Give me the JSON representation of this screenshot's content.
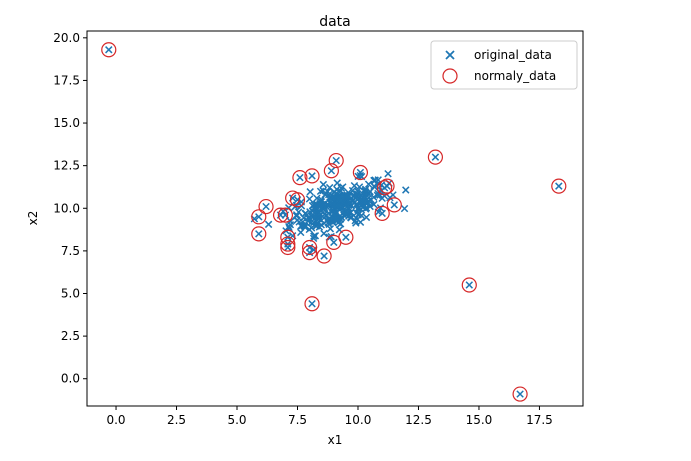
{
  "chart_data": {
    "type": "scatter",
    "title": "data",
    "xlabel": "x1",
    "ylabel": "x2",
    "xlim": [
      -1.2,
      19.3
    ],
    "ylim": [
      -1.6,
      20.4
    ],
    "xticks": [
      0.0,
      2.5,
      5.0,
      7.5,
      10.0,
      12.5,
      15.0,
      17.5
    ],
    "yticks": [
      0.0,
      2.5,
      5.0,
      7.5,
      10.0,
      12.5,
      15.0,
      17.5,
      20.0
    ],
    "xtick_labels": [
      "0.0",
      "2.5",
      "5.0",
      "7.5",
      "10.0",
      "12.5",
      "15.0",
      "17.5"
    ],
    "ytick_labels": [
      "0.0",
      "2.5",
      "5.0",
      "7.5",
      "10.0",
      "12.5",
      "15.0",
      "17.5",
      "20.0"
    ],
    "grid": false,
    "legend_position": "top-right",
    "series": [
      {
        "name": "original_data",
        "marker": "x",
        "color": "#1f77b4",
        "cluster": {
          "center": [
            9.2,
            10.1
          ],
          "spread": [
            1.0,
            0.75
          ],
          "count": 300
        },
        "points": [
          [
            -0.3,
            19.3
          ],
          [
            5.9,
            9.5
          ],
          [
            5.9,
            8.5
          ],
          [
            6.2,
            10.1
          ],
          [
            6.8,
            9.6
          ],
          [
            7.0,
            9.6
          ],
          [
            7.1,
            8.3
          ],
          [
            7.1,
            7.9
          ],
          [
            7.1,
            7.7
          ],
          [
            7.3,
            10.6
          ],
          [
            7.5,
            10.5
          ],
          [
            7.6,
            11.8
          ],
          [
            8.0,
            7.7
          ],
          [
            8.0,
            7.4
          ],
          [
            8.1,
            4.4
          ],
          [
            8.1,
            11.9
          ],
          [
            8.6,
            7.2
          ],
          [
            8.9,
            12.2
          ],
          [
            9.0,
            8.0
          ],
          [
            9.1,
            12.8
          ],
          [
            9.5,
            8.3
          ],
          [
            10.1,
            12.1
          ],
          [
            11.0,
            9.7
          ],
          [
            11.1,
            11.2
          ],
          [
            11.2,
            11.3
          ],
          [
            11.5,
            10.2
          ],
          [
            13.2,
            13.0
          ],
          [
            14.6,
            5.5
          ],
          [
            16.7,
            -0.9
          ],
          [
            18.3,
            11.3
          ]
        ]
      },
      {
        "name": "normaly_data",
        "marker": "circle",
        "color": "#d62728",
        "points": [
          [
            -0.3,
            19.3
          ],
          [
            5.9,
            9.5
          ],
          [
            5.9,
            8.5
          ],
          [
            6.2,
            10.1
          ],
          [
            6.8,
            9.6
          ],
          [
            7.0,
            9.6
          ],
          [
            7.1,
            8.3
          ],
          [
            7.1,
            7.9
          ],
          [
            7.1,
            7.7
          ],
          [
            7.3,
            10.6
          ],
          [
            7.5,
            10.5
          ],
          [
            7.6,
            11.8
          ],
          [
            8.0,
            7.7
          ],
          [
            8.0,
            7.4
          ],
          [
            8.1,
            4.4
          ],
          [
            8.1,
            11.9
          ],
          [
            8.6,
            7.2
          ],
          [
            8.9,
            12.2
          ],
          [
            9.0,
            8.0
          ],
          [
            9.1,
            12.8
          ],
          [
            9.5,
            8.3
          ],
          [
            10.1,
            12.1
          ],
          [
            11.0,
            9.7
          ],
          [
            11.1,
            11.2
          ],
          [
            11.2,
            11.3
          ],
          [
            11.5,
            10.2
          ],
          [
            13.2,
            13.0
          ],
          [
            14.6,
            5.5
          ],
          [
            16.7,
            -0.9
          ],
          [
            18.3,
            11.3
          ]
        ]
      }
    ]
  }
}
